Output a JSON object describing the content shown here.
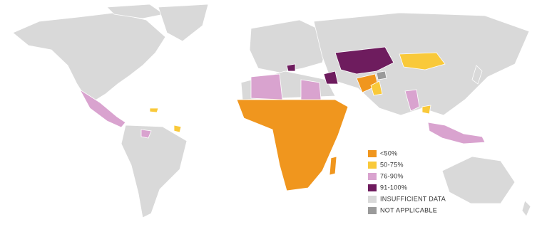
{
  "legend": [
    {
      "label": "<50%",
      "color": "#f0961e"
    },
    {
      "label": "50-75%",
      "color": "#f9c93a"
    },
    {
      "label": "76-90%",
      "color": "#d9a3cf"
    },
    {
      "label": "91-100%",
      "color": "#6e1c5e"
    },
    {
      "label": "INSUFFICIENT DATA",
      "color": "#d9d9d9"
    },
    {
      "label": "NOT APPLICABLE",
      "color": "#9a9a9a"
    }
  ]
}
